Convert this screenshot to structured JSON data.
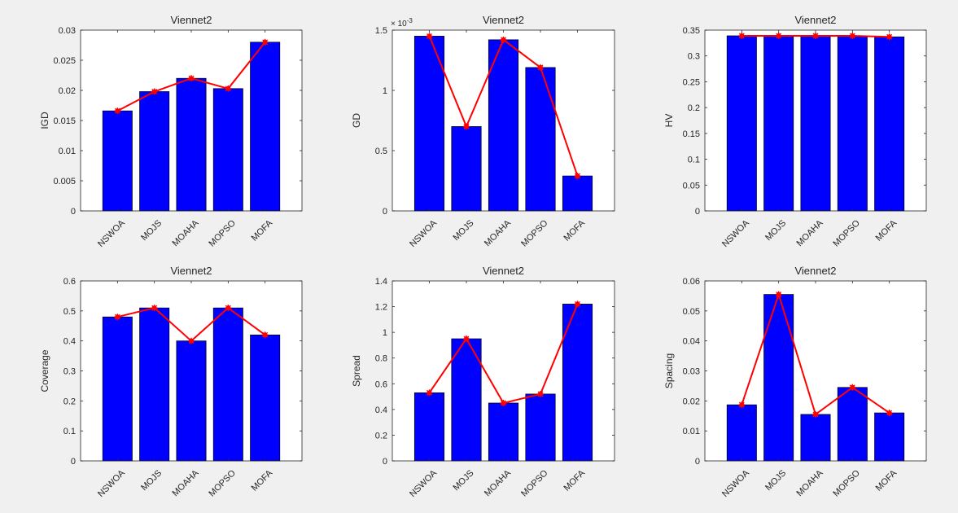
{
  "colors": {
    "bar": "#0000ff",
    "line": "#ff0000",
    "axes": "#ffffff",
    "figure": "#f0f0f0",
    "text": "#262626"
  },
  "chart_data": [
    {
      "type": "bar",
      "title": "Viennet2",
      "ylabel": "IGD",
      "categories": [
        "NSWOA",
        "MOJS",
        "MOAHA",
        "MOPSO",
        "MOFA"
      ],
      "values": [
        0.0166,
        0.0198,
        0.022,
        0.0203,
        0.028
      ],
      "ylim": [
        0,
        0.03
      ],
      "yticks": [
        0,
        0.005,
        0.01,
        0.015,
        0.02,
        0.025,
        0.03
      ],
      "ytick_labels": [
        "0",
        "0.005",
        "0.01",
        "0.015",
        "0.02",
        "0.025",
        "0.03"
      ],
      "exponent_label": ""
    },
    {
      "type": "bar",
      "title": "Viennet2",
      "ylabel": "GD",
      "categories": [
        "NSWOA",
        "MOJS",
        "MOAHA",
        "MOPSO",
        "MOFA"
      ],
      "values": [
        1.45,
        0.7,
        1.42,
        1.19,
        0.29
      ],
      "ylim": [
        0,
        1.5
      ],
      "yticks": [
        0,
        0.5,
        1,
        1.5
      ],
      "ytick_labels": [
        "0",
        "0.5",
        "1",
        "1.5"
      ],
      "exponent_label": "× 10-3"
    },
    {
      "type": "bar",
      "title": "Viennet2",
      "ylabel": "HV",
      "categories": [
        "NSWOA",
        "MOJS",
        "MOAHA",
        "MOPSO",
        "MOFA"
      ],
      "values": [
        0.339,
        0.339,
        0.339,
        0.339,
        0.337
      ],
      "ylim": [
        0,
        0.35
      ],
      "yticks": [
        0,
        0.05,
        0.1,
        0.15,
        0.2,
        0.25,
        0.3,
        0.35
      ],
      "ytick_labels": [
        "0",
        "0.05",
        "0.1",
        "0.15",
        "0.2",
        "0.25",
        "0.3",
        "0.35"
      ],
      "exponent_label": ""
    },
    {
      "type": "bar",
      "title": "Viennet2",
      "ylabel": "Coverage",
      "categories": [
        "NSWOA",
        "MOJS",
        "MOAHA",
        "MOPSO",
        "MOFA"
      ],
      "values": [
        0.48,
        0.51,
        0.4,
        0.51,
        0.42
      ],
      "ylim": [
        0,
        0.6
      ],
      "yticks": [
        0,
        0.1,
        0.2,
        0.3,
        0.4,
        0.5,
        0.6
      ],
      "ytick_labels": [
        "0",
        "0.1",
        "0.2",
        "0.3",
        "0.4",
        "0.5",
        "0.6"
      ],
      "exponent_label": ""
    },
    {
      "type": "bar",
      "title": "Viennet2",
      "ylabel": "Spread",
      "categories": [
        "NSWOA",
        "MOJS",
        "MOAHA",
        "MOPSO",
        "MOFA"
      ],
      "values": [
        0.53,
        0.95,
        0.45,
        0.52,
        1.22
      ],
      "ylim": [
        0,
        1.4
      ],
      "yticks": [
        0,
        0.2,
        0.4,
        0.6,
        0.8,
        1,
        1.2,
        1.4
      ],
      "ytick_labels": [
        "0",
        "0.2",
        "0.4",
        "0.6",
        "0.8",
        "1",
        "1.2",
        "1.4"
      ],
      "exponent_label": ""
    },
    {
      "type": "bar",
      "title": "Viennet2",
      "ylabel": "Spacing",
      "categories": [
        "NSWOA",
        "MOJS",
        "MOAHA",
        "MOPSO",
        "MOFA"
      ],
      "values": [
        0.0187,
        0.0555,
        0.0155,
        0.0245,
        0.016
      ],
      "ylim": [
        0,
        0.06
      ],
      "yticks": [
        0,
        0.01,
        0.02,
        0.03,
        0.04,
        0.05,
        0.06
      ],
      "ytick_labels": [
        "0",
        "0.01",
        "0.02",
        "0.03",
        "0.04",
        "0.05",
        "0.06"
      ],
      "exponent_label": ""
    }
  ]
}
